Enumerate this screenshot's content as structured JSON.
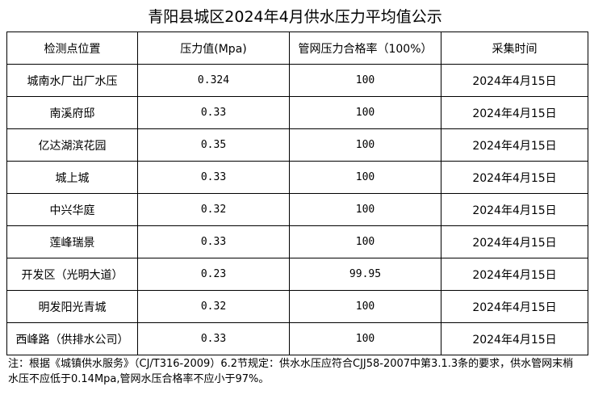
{
  "title": "青阳县城区2024年4月供水压力平均值公示",
  "table": {
    "headers": [
      "检测点位置",
      "压力值(Mpa)",
      "管网压力合格率（100%）",
      "采集时间"
    ],
    "rows": [
      [
        "城南水厂出厂水压",
        "0.324",
        "100",
        "2024年4月15日"
      ],
      [
        "南溪府邸",
        "0.33",
        "100",
        "2024年4月15日"
      ],
      [
        "亿达湖滨花园",
        "0.35",
        "100",
        "2024年4月15日"
      ],
      [
        "城上城",
        "0.33",
        "100",
        "2024年4月15日"
      ],
      [
        "中兴华庭",
        "0.32",
        "100",
        "2024年4月15日"
      ],
      [
        "莲峰瑞景",
        "0.33",
        "100",
        "2024年4月15日"
      ],
      [
        "开发区（光明大道）",
        "0.23",
        "99.95",
        "2024年4月15日"
      ],
      [
        "明发阳光青城",
        "0.32",
        "100",
        "2024年4月15日"
      ],
      [
        "西峰路（供排水公司）",
        "0.33",
        "100",
        "2024年4月15日"
      ]
    ]
  },
  "note": "注：根据《城镇供水服务》（CJ/T316-2009）6.2节规定：供水水压应符合CJJ58-2007中第3.1.3条的要求，供水管网末梢水压不应低于0.14Mpa,管网水压合格率不应小于97%。"
}
